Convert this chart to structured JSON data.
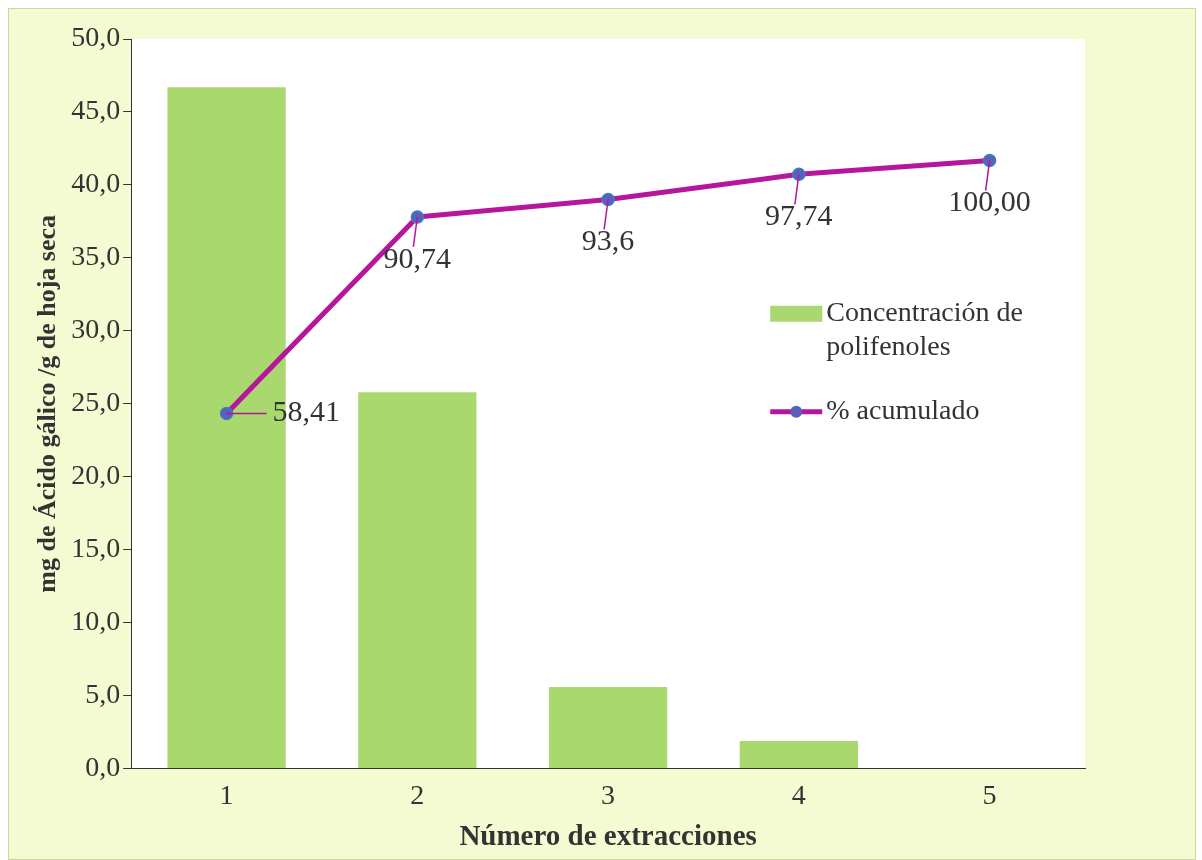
{
  "chart_data": {
    "type": "bar",
    "xlabel": "Número de extracciones",
    "ylabel": "mg de Ácido gálico /g de hoja seca",
    "categories": [
      "1",
      "2",
      "3",
      "4",
      "5"
    ],
    "series": [
      {
        "name": "Concentración de polifenoles",
        "color": "#a9d86e",
        "values": [
          46.7,
          25.8,
          5.6,
          1.9,
          0
        ]
      },
      {
        "name": "% acumulado",
        "type": "line",
        "axis": "y2",
        "color": "#b5169a",
        "values": [
          58.41,
          90.74,
          93.6,
          97.74,
          100.0
        ],
        "value_labels": [
          "58,41",
          "90,74",
          "93,6",
          "97,74",
          "100,00"
        ]
      }
    ],
    "ylim": [
      0,
      50
    ],
    "yticks": [
      {
        "value": 0,
        "label": "0,0"
      },
      {
        "value": 5,
        "label": "5,0"
      },
      {
        "value": 10,
        "label": "10,0"
      },
      {
        "value": 15,
        "label": "15,0"
      },
      {
        "value": 20,
        "label": "20,0"
      },
      {
        "value": 25,
        "label": "25,0"
      },
      {
        "value": 30,
        "label": "30,0"
      },
      {
        "value": 35,
        "label": "35,0"
      },
      {
        "value": 40,
        "label": "40,0"
      },
      {
        "value": 45,
        "label": "45,0"
      },
      {
        "value": 50,
        "label": "50,0"
      }
    ],
    "y2lim": [
      0,
      120
    ],
    "tick_labels": "xy",
    "grid": false,
    "legend": "right",
    "marker": "circle",
    "line_style": "solid"
  }
}
